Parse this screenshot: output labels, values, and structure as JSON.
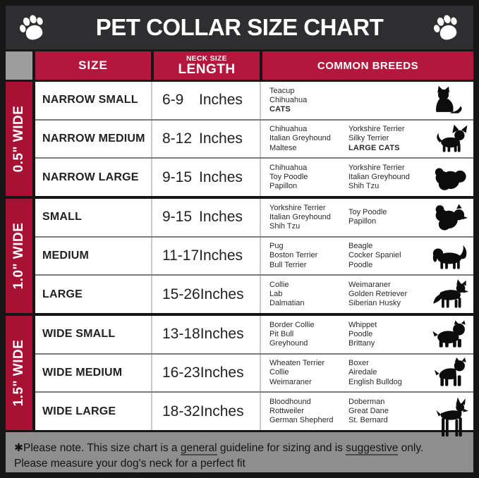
{
  "title": "PET COLLAR SIZE CHART",
  "colors": {
    "header_red": "#b4173d",
    "band_red": "#a61134",
    "title_charcoal": "#2e2e30",
    "frame_black": "#161616",
    "note_gray": "#8e8e8e",
    "corner_gray": "#9d9d9d"
  },
  "icons": {
    "title_left": "paw-icon",
    "title_right": "paw-icon"
  },
  "table": {
    "headers": {
      "size": "SIZE",
      "neck_size_small": "NECK SIZE",
      "neck_size_big": "LENGTH",
      "breeds": "COMMON BREEDS"
    },
    "groups": [
      {
        "width_label": "0.5\" WIDE"
      },
      {
        "width_label": "1.0\" WIDE"
      },
      {
        "width_label": "1.5\" WIDE"
      }
    ],
    "rows": [
      {
        "size": "NARROW SMALL",
        "range": "6-9",
        "unit": "Inches",
        "col1": [
          "Teacup",
          "Chihuahua",
          "CATS"
        ],
        "col2": [],
        "icon": "cat"
      },
      {
        "size": "NARROW MEDIUM",
        "range": "8-12",
        "unit": "Inches",
        "col1": [
          "Chihuahua",
          "Italian Greyhound",
          "Maltese"
        ],
        "col2": [
          "Yorkshire Terrier",
          "Silky Terrier",
          "LARGE CATS"
        ],
        "icon": "chihuahua"
      },
      {
        "size": "NARROW LARGE",
        "range": "9-15",
        "unit": "Inches",
        "col1": [
          "Chihuahua",
          "Toy Poodle",
          "Papillon"
        ],
        "col2": [
          "Yorkshire Terrier",
          "Italian Greyhound",
          "Shih Tzu"
        ],
        "icon": "shih-tzu"
      },
      {
        "size": "SMALL",
        "range": "9-15",
        "unit": "Inches",
        "col1": [
          "Yorkshire Terrier",
          "Italian Greyhound",
          "Shih Tzu"
        ],
        "col2": [
          "Toy Poodle",
          "Papillon"
        ],
        "icon": "pomeranian"
      },
      {
        "size": "MEDIUM",
        "range": "11-17",
        "unit": "Inches",
        "col1": [
          "Pug",
          "Boston Terrier",
          "Bull Terrier"
        ],
        "col2": [
          "Beagle",
          "Cocker Spaniel",
          "Poodle"
        ],
        "icon": "beagle"
      },
      {
        "size": "LARGE",
        "range": "15-26",
        "unit": "Inches",
        "col1": [
          "Collie",
          "Lab",
          "Dalmatian"
        ],
        "col2": [
          "Weimaraner",
          "Golden Retriever",
          "Siberian Husky"
        ],
        "icon": "husky"
      },
      {
        "size": "WIDE SMALL",
        "range": "13-18",
        "unit": "Inches",
        "col1": [
          "Border Collie",
          "Pit Bull",
          "Greyhound"
        ],
        "col2": [
          "Whippet",
          "Poodle",
          "Brittany"
        ],
        "icon": "pit-bull"
      },
      {
        "size": "WIDE MEDIUM",
        "range": "16-23",
        "unit": "Inches",
        "col1": [
          "Wheaten Terrier",
          "Collie",
          "Weimaraner"
        ],
        "col2": [
          "Boxer",
          "Airedale",
          "English Bulldog"
        ],
        "icon": "boxer"
      },
      {
        "size": "WIDE LARGE",
        "range": "18-32",
        "unit": "Inches",
        "col1": [
          "Bloodhound",
          "Rottweiler",
          "German Shepherd"
        ],
        "col2": [
          "Doberman",
          "Great Dane",
          "St. Bernard"
        ],
        "icon": "doberman"
      }
    ]
  },
  "footer": {
    "asterisk": "✱",
    "line1_part1": "Please note. This size chart is a ",
    "line1_underline1": "general",
    "line1_part2": " guideline for sizing and is ",
    "line1_underline2": "suggestive",
    "line1_part3": " only.",
    "line2": "Please measure your dog's neck for a perfect fit"
  }
}
